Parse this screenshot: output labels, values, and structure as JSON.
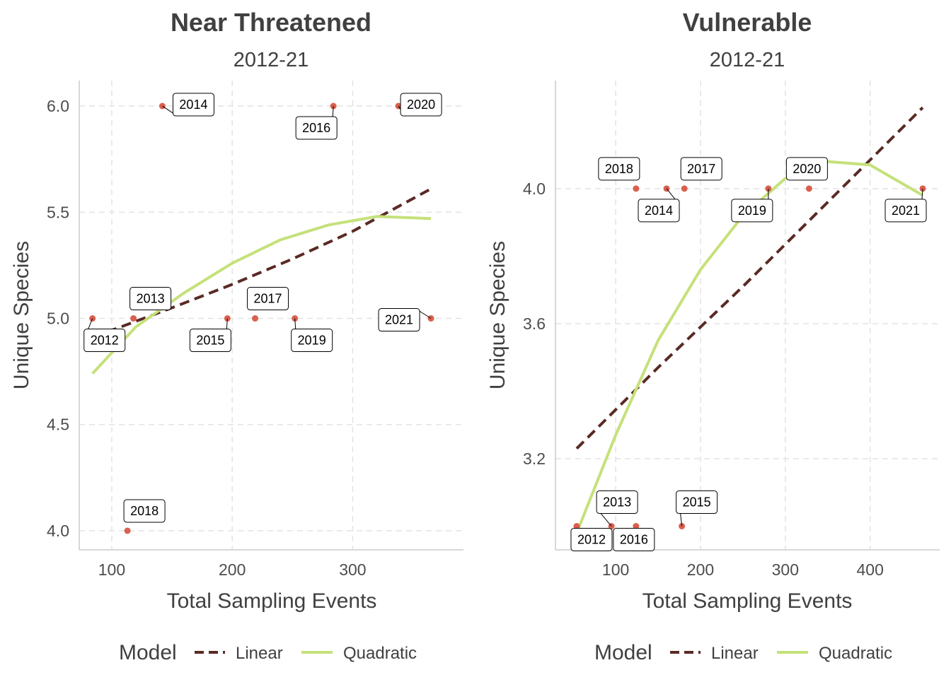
{
  "legend": {
    "title": "Model",
    "linear_label": "Linear",
    "quadratic_label": "Quadratic",
    "colors": {
      "linear": "#5a2a24",
      "quadratic": "#c5e17a",
      "points": "#d9604f"
    }
  },
  "chart_data": [
    {
      "type": "scatter",
      "title": "Near Threatened",
      "subtitle": "2012-21",
      "xlabel": "Total Sampling Events",
      "ylabel": "Unique Species",
      "xlim": [
        73,
        392
      ],
      "ylim": [
        3.91,
        6.12
      ],
      "x_ticks": [
        100,
        200,
        300
      ],
      "y_ticks": [
        4.0,
        4.5,
        5.0,
        5.5,
        6.0
      ],
      "x_tick_labels": [
        "100",
        "200",
        "300"
      ],
      "y_tick_labels": [
        "4.0",
        "4.5",
        "5.0",
        "5.5",
        "6.0"
      ],
      "grid": true,
      "points": [
        {
          "label": "2012",
          "x": 84,
          "y": 5
        },
        {
          "label": "2013",
          "x": 118,
          "y": 5
        },
        {
          "label": "2014",
          "x": 142,
          "y": 6
        },
        {
          "label": "2015",
          "x": 196,
          "y": 5
        },
        {
          "label": "2016",
          "x": 284,
          "y": 6
        },
        {
          "label": "2017",
          "x": 219,
          "y": 5
        },
        {
          "label": "2018",
          "x": 113,
          "y": 4
        },
        {
          "label": "2019",
          "x": 252,
          "y": 5
        },
        {
          "label": "2020",
          "x": 338,
          "y": 6
        },
        {
          "label": "2021",
          "x": 365,
          "y": 5
        }
      ],
      "series": [
        {
          "name": "Linear",
          "x": [
            84,
            150,
            200,
            250,
            300,
            365
          ],
          "y": [
            4.91,
            5.05,
            5.16,
            5.28,
            5.41,
            5.61
          ]
        },
        {
          "name": "Quadratic",
          "x": [
            84,
            120,
            160,
            200,
            240,
            280,
            320,
            365
          ],
          "y": [
            4.74,
            4.96,
            5.12,
            5.26,
            5.37,
            5.44,
            5.48,
            5.47
          ]
        }
      ],
      "legend_position": "bottom"
    },
    {
      "type": "scatter",
      "title": "Vulnerable",
      "subtitle": "2012-21",
      "xlabel": "Total Sampling Events",
      "ylabel": "Unique Species",
      "xlim": [
        29,
        482
      ],
      "ylim": [
        2.93,
        4.32
      ],
      "x_ticks": [
        100,
        200,
        300,
        400
      ],
      "y_ticks": [
        3.2,
        3.6,
        4.0
      ],
      "x_tick_labels": [
        "100",
        "200",
        "300",
        "400"
      ],
      "y_tick_labels": [
        "3.2",
        "3.6",
        "4.0"
      ],
      "grid": true,
      "points": [
        {
          "label": "2012",
          "x": 54,
          "y": 3
        },
        {
          "label": "2013",
          "x": 95,
          "y": 3
        },
        {
          "label": "2014",
          "x": 160,
          "y": 4
        },
        {
          "label": "2015",
          "x": 178,
          "y": 3
        },
        {
          "label": "2016",
          "x": 124,
          "y": 3
        },
        {
          "label": "2017",
          "x": 181,
          "y": 4
        },
        {
          "label": "2018",
          "x": 124,
          "y": 4
        },
        {
          "label": "2019",
          "x": 280,
          "y": 4
        },
        {
          "label": "2020",
          "x": 328,
          "y": 4
        },
        {
          "label": "2021",
          "x": 462,
          "y": 4
        }
      ],
      "series": [
        {
          "name": "Linear",
          "x": [
            54,
            150,
            250,
            350,
            462
          ],
          "y": [
            3.23,
            3.47,
            3.71,
            3.96,
            4.24
          ]
        },
        {
          "name": "Quadratic",
          "x": [
            54,
            100,
            150,
            200,
            250,
            300,
            350,
            400,
            462
          ],
          "y": [
            2.98,
            3.27,
            3.55,
            3.76,
            3.92,
            4.03,
            4.08,
            4.07,
            3.98
          ]
        }
      ],
      "legend_position": "bottom"
    }
  ]
}
